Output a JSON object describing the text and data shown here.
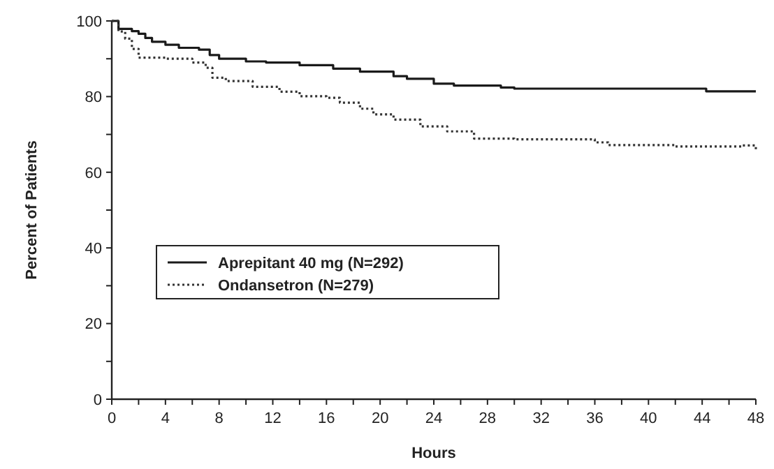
{
  "chart_data": {
    "type": "step",
    "xlabel": "Hours",
    "ylabel": "Percent of Patients",
    "xlim": [
      0,
      48
    ],
    "ylim": [
      0,
      100
    ],
    "xticks": [
      0,
      {
        "value": 2,
        "label": null
      },
      4,
      {
        "value": 6,
        "label": null
      },
      8,
      {
        "value": 10,
        "label": null
      },
      12,
      {
        "value": 14,
        "label": null
      },
      16,
      {
        "value": 18,
        "label": null
      },
      20,
      {
        "value": 22,
        "label": null
      },
      24,
      {
        "value": 26,
        "label": null
      },
      28,
      {
        "value": 30,
        "label": null
      },
      32,
      {
        "value": 34,
        "label": null
      },
      36,
      {
        "value": 38,
        "label": null
      },
      40,
      {
        "value": 42,
        "label": null
      },
      44,
      {
        "value": 46,
        "label": null
      },
      48
    ],
    "yticks": [
      0,
      {
        "value": 10,
        "label": null
      },
      20,
      {
        "value": 30,
        "label": null
      },
      40,
      {
        "value": 50,
        "label": null
      },
      60,
      {
        "value": 70,
        "label": null
      },
      80,
      {
        "value": 90,
        "label": null
      },
      100
    ],
    "grid": false,
    "legend": "left",
    "marker": "none",
    "series": [
      {
        "name": "Aprepitant 40 mg (N=292)",
        "color": "#1a1a1a",
        "line_style": "solid",
        "x": [
          0,
          0.5,
          1.5,
          2,
          2.5,
          3,
          4,
          5,
          6.5,
          7.3,
          8,
          10,
          11.5,
          14,
          16.5,
          18.5,
          21,
          22,
          24,
          25.5,
          29,
          30,
          44.3,
          48
        ],
        "values": [
          100,
          97.9,
          97.3,
          96.6,
          95.5,
          94.5,
          93.7,
          92.9,
          92.4,
          91,
          90,
          89.3,
          89,
          88.3,
          87.4,
          86.6,
          85.4,
          84.7,
          83.4,
          82.9,
          82.4,
          82.1,
          81.4,
          81.4
        ]
      },
      {
        "name": "Ondansetron (N=279)",
        "color": "#333333",
        "line_style": "dotted",
        "x": [
          0,
          0.5,
          1,
          1.5,
          2,
          4,
          6,
          7,
          7.5,
          8.5,
          10.5,
          12.5,
          14,
          16,
          17,
          18.5,
          19.5,
          21,
          23,
          25,
          27,
          30,
          36,
          37,
          42,
          47,
          48
        ],
        "values": [
          100,
          97.2,
          95.3,
          92.6,
          90.3,
          90,
          89,
          87.6,
          85,
          84.1,
          82.6,
          81.3,
          80.1,
          79.7,
          78.4,
          76.8,
          75.3,
          73.9,
          72.1,
          70.8,
          68.9,
          68.7,
          67.9,
          67.2,
          66.8,
          67.1,
          66
        ]
      }
    ]
  }
}
